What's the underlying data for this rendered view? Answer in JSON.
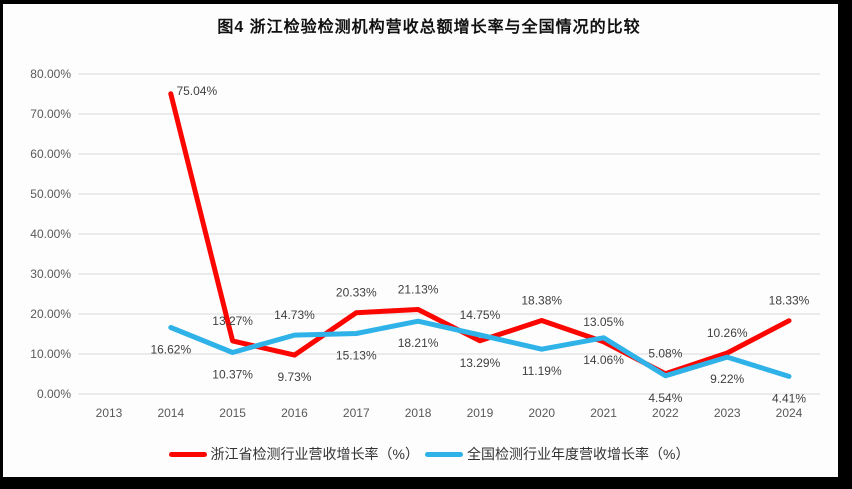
{
  "title": "图4  浙江检验检测机构营收总额增长率与全国情况的比较",
  "legend": {
    "items": [
      {
        "label": "浙江省检测行业营收增长率（%）",
        "color": "#fb0600"
      },
      {
        "label": "全国检测行业年度营收增长率（%）",
        "color": "#2eb2e8"
      }
    ]
  },
  "chart_data": {
    "type": "line",
    "categories": [
      "2013",
      "2014",
      "2015",
      "2016",
      "2017",
      "2018",
      "2019",
      "2020",
      "2021",
      "2022",
      "2023",
      "2024"
    ],
    "series": [
      {
        "name": "浙江省检测行业营收增长率（%）",
        "color": "#fb0600",
        "values": [
          null,
          75.04,
          13.27,
          9.73,
          20.33,
          21.13,
          13.29,
          18.38,
          13.05,
          5.08,
          10.26,
          18.33
        ],
        "label_placements": [
          null,
          "right",
          "above",
          "below",
          "above",
          "above",
          "below",
          "above",
          "above",
          "above",
          "above",
          "above"
        ]
      },
      {
        "name": "全国检测行业年度营收增长率（%）",
        "color": "#2eb2e8",
        "values": [
          null,
          16.62,
          10.37,
          14.73,
          15.13,
          18.21,
          14.75,
          11.19,
          14.06,
          4.54,
          9.22,
          4.41
        ],
        "label_placements": [
          null,
          "below",
          "below",
          "above",
          "below",
          "below",
          "above",
          "below",
          "below",
          "below",
          "below",
          "below"
        ]
      }
    ],
    "y_ticks": [
      "0.00%",
      "10.00%",
      "20.00%",
      "30.00%",
      "40.00%",
      "50.00%",
      "60.00%",
      "70.00%",
      "80.00%"
    ],
    "ylim": [
      0,
      80
    ],
    "y_step": 10,
    "grid": true,
    "legend_position": "bottom",
    "data_label_format": "0.00%",
    "colors": {
      "gridline": "#d9d9d9",
      "axis_text": "#595959",
      "data_label_text": "#3f3f3f",
      "plot_background": "#fdfdfd",
      "frame": "#000000"
    }
  }
}
